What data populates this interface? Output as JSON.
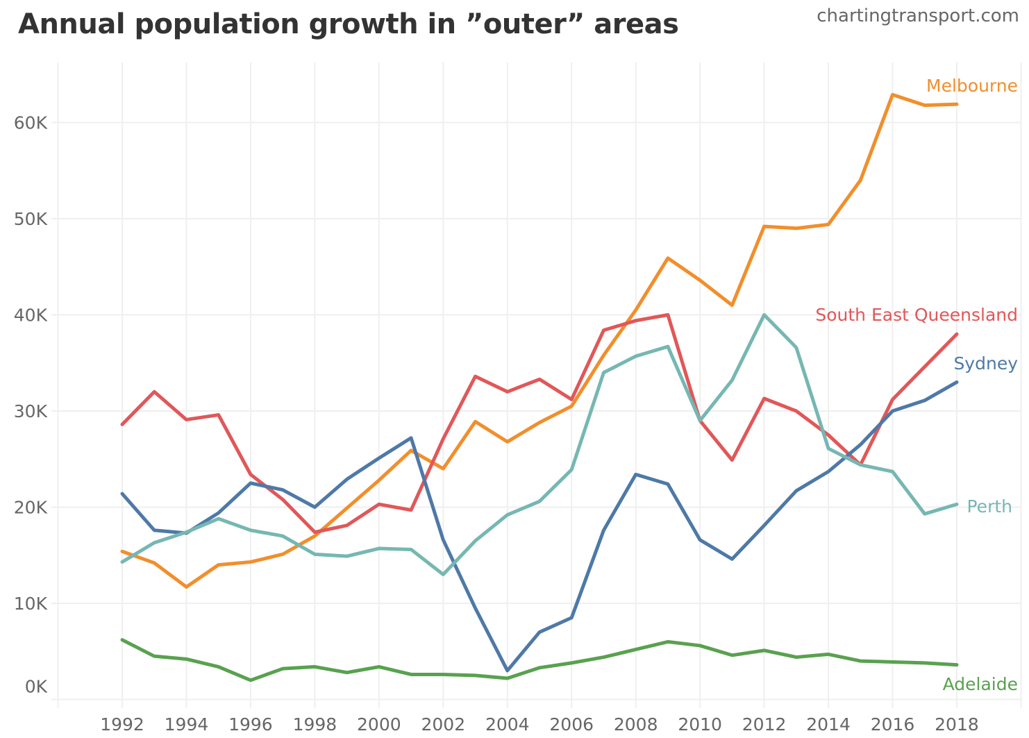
{
  "title": "Annual population growth in ”outer” areas",
  "source": "chartingtransport.com",
  "chart_data": {
    "type": "line",
    "title": "Annual population growth in ”outer” areas",
    "xlabel": "",
    "ylabel": "",
    "x": [
      1992,
      1993,
      1994,
      1995,
      1996,
      1997,
      1998,
      1999,
      2000,
      2001,
      2002,
      2003,
      2004,
      2005,
      2006,
      2007,
      2008,
      2009,
      2010,
      2011,
      2012,
      2013,
      2014,
      2015,
      2016,
      2017,
      2018
    ],
    "xlim": [
      1990,
      2020
    ],
    "ylim": [
      0,
      66000
    ],
    "x_ticks": [
      "1992",
      "1994",
      "1996",
      "1998",
      "2000",
      "2002",
      "2004",
      "2006",
      "2008",
      "2010",
      "2012",
      "2014",
      "2016",
      "2018"
    ],
    "y_ticks": [
      {
        "v": 0,
        "label": "0K"
      },
      {
        "v": 10000,
        "label": "10K"
      },
      {
        "v": 20000,
        "label": "20K"
      },
      {
        "v": 30000,
        "label": "30K"
      },
      {
        "v": 40000,
        "label": "40K"
      },
      {
        "v": 50000,
        "label": "50K"
      },
      {
        "v": 60000,
        "label": "60K"
      }
    ],
    "grid": true,
    "legend": "direct labels at line ends",
    "series": [
      {
        "name": "Melbourne",
        "color": "#f28e2b",
        "values": [
          15400,
          14200,
          11700,
          14000,
          14300,
          15100,
          17000,
          19900,
          22800,
          25900,
          24000,
          28900,
          26800,
          28800,
          30500,
          35800,
          40500,
          45900,
          43600,
          41000,
          49200,
          49000,
          49400,
          54000,
          62900,
          61800,
          61900
        ]
      },
      {
        "name": "South East Queensland",
        "color": "#e15759",
        "values": [
          28600,
          32000,
          29100,
          29600,
          23400,
          20800,
          17400,
          18100,
          20300,
          19700,
          27100,
          33600,
          32000,
          33300,
          31200,
          38400,
          39400,
          40000,
          29000,
          24900,
          31300,
          30000,
          27500,
          24400,
          31200,
          34600,
          38000
        ]
      },
      {
        "name": "Sydney",
        "color": "#4e79a7",
        "values": [
          21400,
          17600,
          17300,
          19400,
          22500,
          21800,
          20000,
          22900,
          25100,
          27200,
          16600,
          9500,
          3000,
          7000,
          8500,
          17600,
          23400,
          22400,
          16600,
          14600,
          18100,
          21700,
          23700,
          26500,
          30000,
          31100,
          33000
        ]
      },
      {
        "name": "Perth",
        "color": "#76b7b2",
        "values": [
          14300,
          16300,
          17400,
          18800,
          17600,
          17000,
          15100,
          14900,
          15700,
          15600,
          13000,
          16500,
          19200,
          20600,
          23900,
          34000,
          35700,
          36700,
          29000,
          33200,
          40000,
          36600,
          26100,
          24400,
          23700,
          19300,
          20300
        ]
      },
      {
        "name": "Adelaide",
        "color": "#59a14f",
        "values": [
          6200,
          4500,
          4200,
          3400,
          2000,
          3200,
          3400,
          2800,
          3400,
          2600,
          2600,
          2500,
          2200,
          3300,
          3800,
          4400,
          5200,
          6000,
          5600,
          4600,
          5100,
          4400,
          4700,
          4000,
          3900,
          3800,
          3600
        ]
      }
    ]
  }
}
